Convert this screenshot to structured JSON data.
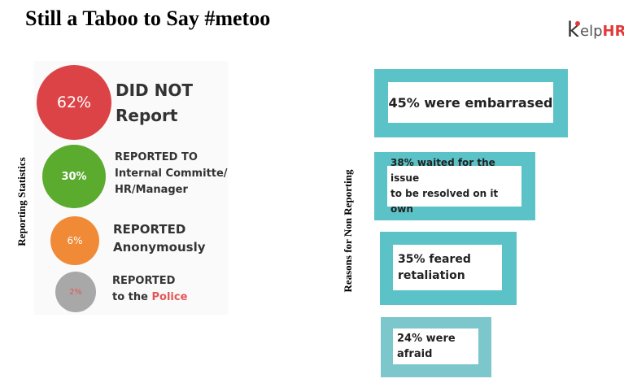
{
  "title": "Still a Taboo to Say #metoo",
  "logo": {
    "k": "k",
    "elp": "elp",
    "hr": "HR"
  },
  "left_axis_label": "Reporting Statistics",
  "right_axis_label": "Reasons for Non Reporting",
  "stats": [
    {
      "percent": "62%",
      "line1": "DID NOT",
      "line2": "Report",
      "line3": "",
      "color": "#dc4346"
    },
    {
      "percent": "30%",
      "line1": "REPORTED TO",
      "line2": "Internal Committe/",
      "line3": "HR/Manager",
      "color": "#5aab2e"
    },
    {
      "percent": "6%",
      "line1": "REPORTED",
      "line2": "Anonymously",
      "line3": "",
      "color": "#f08a36"
    },
    {
      "percent": "2%",
      "line1": "REPORTED",
      "line2": "to the",
      "line2_highlight": "Police",
      "line3": "",
      "color": "#a8a8a8"
    }
  ],
  "reasons": [
    {
      "line1": "45% were embarrased",
      "line2": ""
    },
    {
      "line1": "38% waited for the issue",
      "line2": "to be resolved on it own"
    },
    {
      "line1": "35% feared",
      "line2": "retaliation"
    },
    {
      "line1": "24% were",
      "line2": "afraid"
    }
  ]
}
